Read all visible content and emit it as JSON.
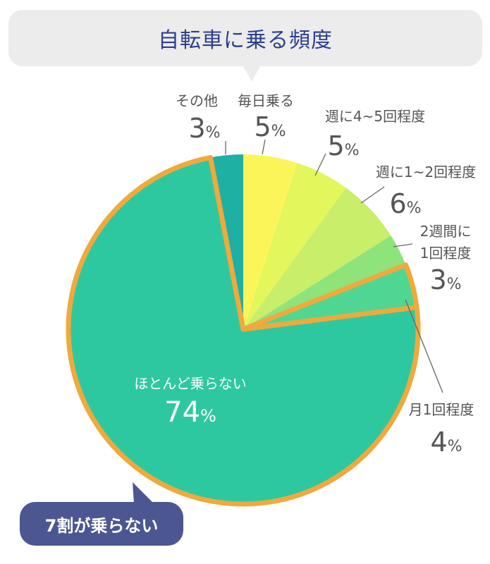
{
  "title": "自転車に乗る頻度",
  "callout": "7割が乗らない",
  "colors": {
    "title": "#2e3f8f",
    "highlight_border": "#f0a93c",
    "label_text": "#555555",
    "callout_bg": "#4c5791"
  },
  "chart_data": {
    "type": "pie",
    "unit": "%",
    "categories": [
      "毎日乗る",
      "週に4~5回程度",
      "週に1~2回程度",
      "2週間に1回程度",
      "月1回程度",
      "ほとんど乗らない",
      "その他"
    ],
    "values": [
      5,
      5,
      6,
      3,
      4,
      74,
      3
    ],
    "colors": [
      "#fcf55a",
      "#e3f65b",
      "#c8ee6a",
      "#8ee37a",
      "#4fd692",
      "#2ec8a0",
      "#1fb0a4"
    ],
    "highlighted": [
      "月1回程度",
      "ほとんど乗らない"
    ],
    "value_labels": [
      "5%",
      "5%",
      "6%",
      "3%",
      "4%",
      "74%",
      "3%"
    ]
  }
}
